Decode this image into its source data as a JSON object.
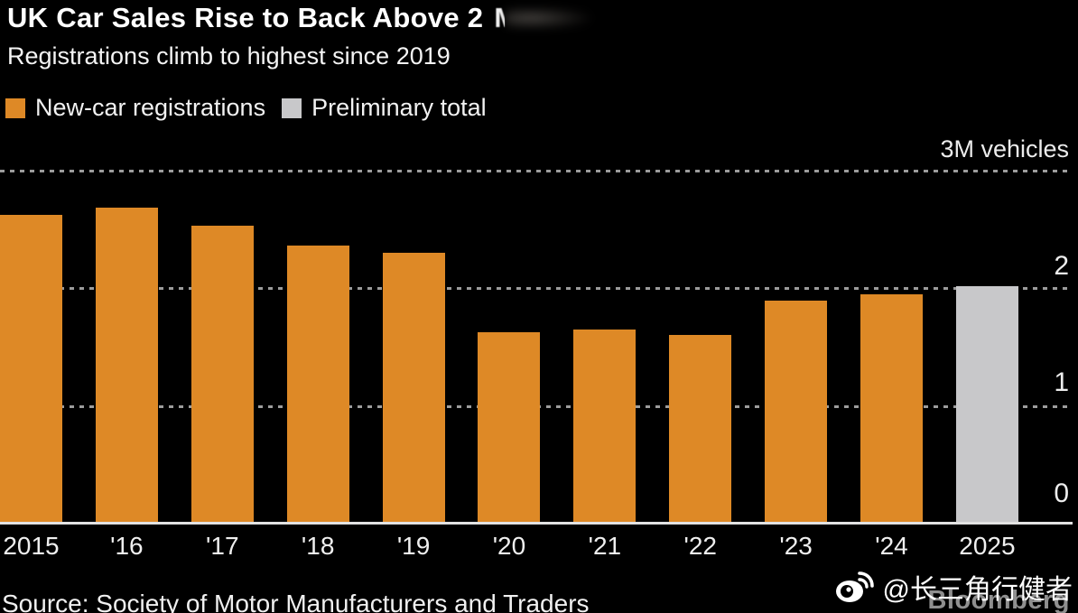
{
  "header": {
    "title": "UK Car Sales Rise to Back Above 2",
    "title_obscured": "M",
    "subtitle": "Registrations climb to highest since 2019"
  },
  "legend": {
    "items": [
      {
        "label": "New-car registrations"
      },
      {
        "label": "Preliminary total"
      }
    ]
  },
  "axis": {
    "top_label": "3M vehicles",
    "yticks": [
      "2",
      "1",
      "0"
    ]
  },
  "chart_data": {
    "type": "bar",
    "title": "UK Car Sales Rise to Back Above 2",
    "subtitle": "Registrations climb to highest since 2019",
    "unit": "millions of vehicles",
    "categories": [
      "2015",
      "'16",
      "'17",
      "'18",
      "'19",
      "'20",
      "'21",
      "'22",
      "'23",
      "'24",
      "2025"
    ],
    "series": [
      {
        "name": "New-car registrations",
        "color": "#DE8926",
        "values": [
          2.63,
          2.69,
          2.54,
          2.37,
          2.31,
          1.63,
          1.65,
          1.61,
          1.9,
          1.95,
          null
        ]
      },
      {
        "name": "Preliminary total",
        "color": "#C8C8CA",
        "values": [
          null,
          null,
          null,
          null,
          null,
          null,
          null,
          null,
          null,
          null,
          2.02
        ]
      }
    ],
    "ylim": [
      0,
      3
    ],
    "ytick_values": [
      3,
      2,
      1,
      0
    ],
    "ytick_top_label": "3M vehicles",
    "grid": "dotted-horizontal",
    "legend_position": "top-left",
    "background": "#000000"
  },
  "footer": {
    "source": "Source: Society of Motor Manufacturers and Traders",
    "brand": "Bloomberg",
    "watermark": "@长三角行健者",
    "watermark_icon": "weibo-icon"
  }
}
